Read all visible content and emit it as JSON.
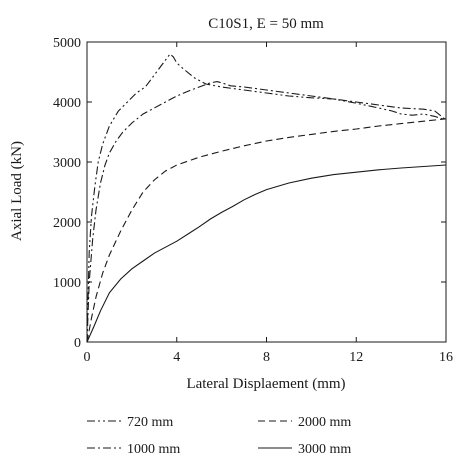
{
  "chart_data": {
    "type": "line",
    "title": "C10S1, E = 50 mm",
    "xlabel": "Lateral Displaement (mm)",
    "ylabel": "Axial Load (kN)",
    "xlim": [
      0,
      16
    ],
    "ylim": [
      0,
      5000
    ],
    "xticks": [
      0,
      4,
      8,
      12,
      16
    ],
    "yticks": [
      0,
      1000,
      2000,
      3000,
      4000,
      5000
    ],
    "grid": false,
    "legend": "bottom",
    "series": [
      {
        "name": "720 mm",
        "dash": "dash-dot-dot",
        "x": [
          0,
          0.1,
          0.2,
          0.35,
          0.5,
          0.7,
          1.0,
          1.4,
          1.8,
          2.2,
          2.6,
          3.0,
          3.4,
          3.7,
          3.85,
          4.0,
          4.3,
          4.8,
          5.3,
          6.0,
          7.0,
          8.0,
          9.0,
          10.0,
          11.0,
          12.0,
          13.0,
          13.6,
          14.0,
          14.5,
          15.0,
          15.5,
          16.0
        ],
        "y": [
          0,
          1500,
          2100,
          2600,
          3000,
          3300,
          3600,
          3850,
          4000,
          4150,
          4250,
          4450,
          4650,
          4800,
          4750,
          4650,
          4550,
          4400,
          4300,
          4250,
          4200,
          4150,
          4100,
          4070,
          4050,
          3980,
          3900,
          3850,
          3800,
          3780,
          3800,
          3760,
          3700
        ]
      },
      {
        "name": "1000 mm",
        "dash": "dash-dot",
        "x": [
          0,
          0.1,
          0.25,
          0.4,
          0.6,
          0.8,
          1.0,
          1.3,
          1.6,
          2.0,
          2.5,
          3.0,
          3.5,
          4.0,
          4.5,
          5.0,
          5.5,
          5.8,
          6.0,
          6.4,
          7.0,
          8.0,
          9.0,
          10.0,
          11.0,
          12.0,
          13.0,
          14.0,
          15.0,
          15.5,
          16.0
        ],
        "y": [
          0,
          1000,
          1700,
          2200,
          2650,
          2950,
          3150,
          3350,
          3500,
          3650,
          3800,
          3900,
          4000,
          4100,
          4180,
          4250,
          4320,
          4340,
          4320,
          4270,
          4250,
          4200,
          4150,
          4100,
          4050,
          4000,
          3950,
          3900,
          3880,
          3850,
          3700
        ]
      },
      {
        "name": "2000 mm",
        "dash": "dash",
        "x": [
          0,
          0.2,
          0.4,
          0.7,
          1.0,
          1.5,
          2.0,
          2.5,
          3.0,
          3.5,
          4.0,
          5.0,
          6.0,
          7.0,
          8.0,
          9.0,
          10.0,
          11.0,
          12.0,
          13.0,
          14.0,
          15.0,
          16.0
        ],
        "y": [
          0,
          400,
          750,
          1150,
          1450,
          1850,
          2200,
          2500,
          2700,
          2850,
          2950,
          3080,
          3180,
          3270,
          3350,
          3410,
          3460,
          3510,
          3550,
          3600,
          3640,
          3680,
          3720
        ]
      },
      {
        "name": "3000 mm",
        "dash": "solid",
        "x": [
          0,
          0.3,
          0.6,
          1.0,
          1.5,
          2.0,
          2.5,
          3.0,
          3.5,
          4.0,
          4.5,
          5.0,
          5.5,
          6.0,
          6.5,
          7.0,
          7.5,
          8.0,
          9.0,
          10.0,
          11.0,
          12.0,
          13.0,
          14.0,
          15.0,
          16.0
        ],
        "y": [
          0,
          250,
          520,
          820,
          1050,
          1220,
          1350,
          1480,
          1580,
          1680,
          1800,
          1920,
          2050,
          2160,
          2260,
          2370,
          2460,
          2540,
          2650,
          2730,
          2790,
          2830,
          2870,
          2900,
          2925,
          2950
        ]
      }
    ]
  }
}
